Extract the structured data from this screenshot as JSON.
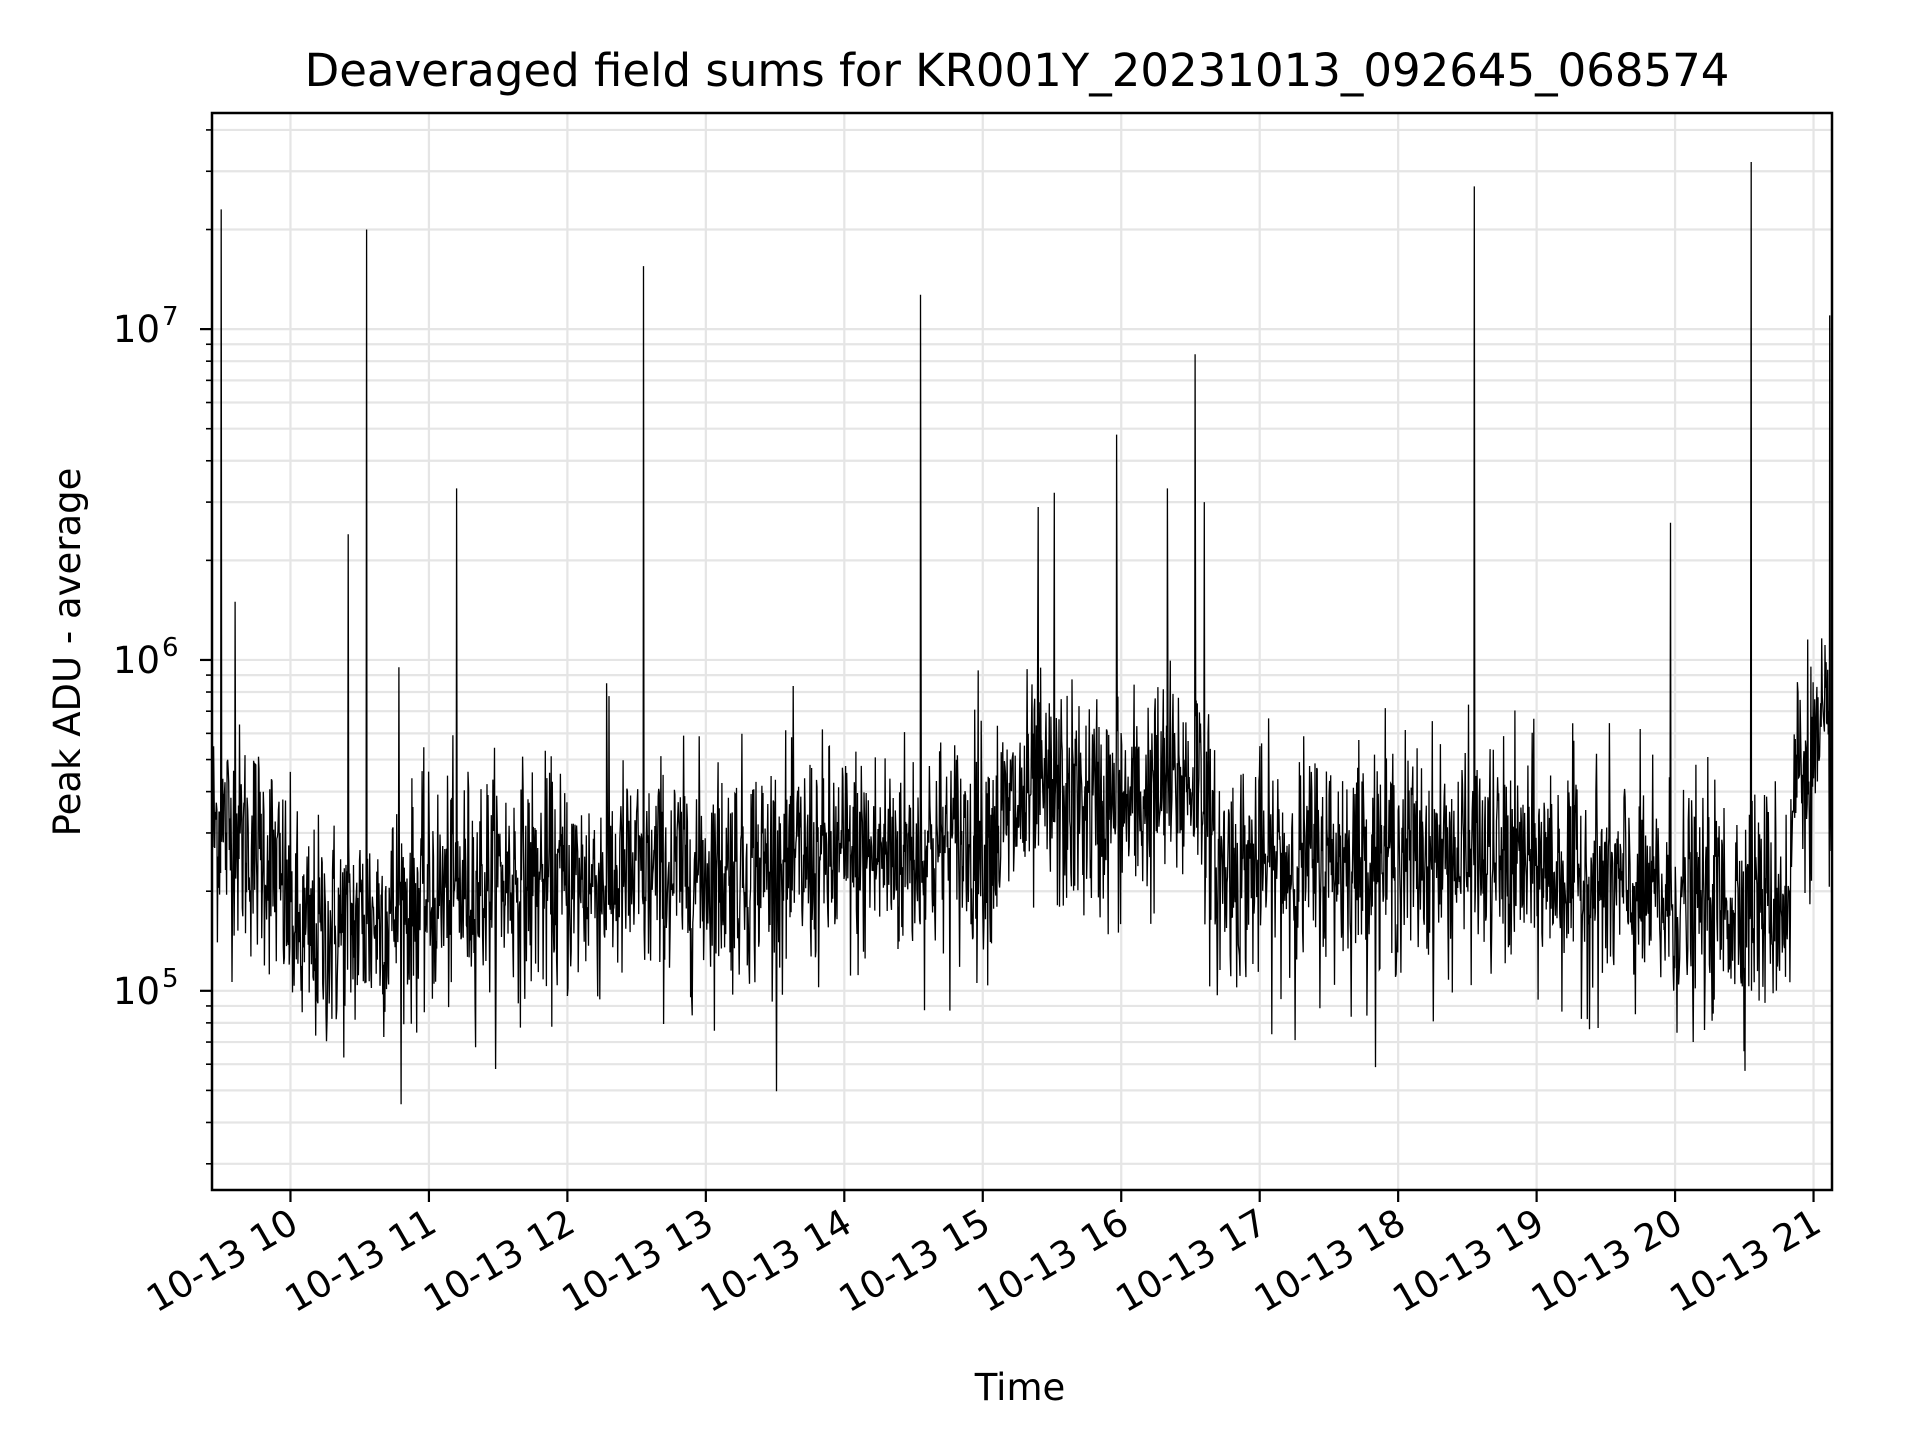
{
  "chart_data": {
    "type": "line",
    "title": "Deaveraged field sums for KR001Y_20231013_092645_068574",
    "xlabel": "Time",
    "ylabel": "Peak ADU - average",
    "y_scale": "log",
    "ylim": [
      25000,
      45000000
    ],
    "xlim": [
      "2023-10-13 09:26",
      "2023-10-13 21:08"
    ],
    "grid": "major and minor",
    "line_color": "#000000",
    "grid_color": "#e5e5e5",
    "x_ticks": [
      {
        "t": "2023-10-13 10:00",
        "label": "10-13 10"
      },
      {
        "t": "2023-10-13 11:00",
        "label": "10-13 11"
      },
      {
        "t": "2023-10-13 12:00",
        "label": "10-13 12"
      },
      {
        "t": "2023-10-13 13:00",
        "label": "10-13 13"
      },
      {
        "t": "2023-10-13 14:00",
        "label": "10-13 14"
      },
      {
        "t": "2023-10-13 15:00",
        "label": "10-13 15"
      },
      {
        "t": "2023-10-13 16:00",
        "label": "10-13 16"
      },
      {
        "t": "2023-10-13 17:00",
        "label": "10-13 17"
      },
      {
        "t": "2023-10-13 18:00",
        "label": "10-13 18"
      },
      {
        "t": "2023-10-13 19:00",
        "label": "10-13 19"
      },
      {
        "t": "2023-10-13 20:00",
        "label": "10-13 20"
      },
      {
        "t": "2023-10-13 21:00",
        "label": "10-13 21"
      }
    ],
    "y_ticks": [
      {
        "value": 100000,
        "base": "10",
        "exp": "5"
      },
      {
        "value": 1000000,
        "base": "10",
        "exp": "6"
      },
      {
        "value": 10000000,
        "base": "10",
        "exp": "7"
      }
    ],
    "baseline": [
      {
        "t": "2023-10-13 09:26",
        "y": 320000
      },
      {
        "t": "2023-10-13 09:50",
        "y": 260000
      },
      {
        "t": "2023-10-13 10:05",
        "y": 140000
      },
      {
        "t": "2023-10-13 10:30",
        "y": 160000
      },
      {
        "t": "2023-10-13 11:00",
        "y": 190000
      },
      {
        "t": "2023-10-13 11:30",
        "y": 220000
      },
      {
        "t": "2023-10-13 12:00",
        "y": 210000
      },
      {
        "t": "2023-10-13 13:00",
        "y": 230000
      },
      {
        "t": "2023-10-13 14:00",
        "y": 250000
      },
      {
        "t": "2023-10-13 15:00",
        "y": 280000
      },
      {
        "t": "2023-10-13 15:20",
        "y": 380000
      },
      {
        "t": "2023-10-13 16:00",
        "y": 350000
      },
      {
        "t": "2023-10-13 16:35",
        "y": 450000
      },
      {
        "t": "2023-10-13 16:40",
        "y": 230000
      },
      {
        "t": "2023-10-13 18:00",
        "y": 260000
      },
      {
        "t": "2023-10-13 19:00",
        "y": 240000
      },
      {
        "t": "2023-10-13 20:00",
        "y": 180000
      },
      {
        "t": "2023-10-13 20:50",
        "y": 190000
      },
      {
        "t": "2023-10-13 20:52",
        "y": 480000
      },
      {
        "t": "2023-10-13 21:08",
        "y": 520000
      }
    ],
    "spikes": [
      {
        "t": "2023-10-13 09:30",
        "y": 23000000
      },
      {
        "t": "2023-10-13 09:36",
        "y": 1500000
      },
      {
        "t": "2023-10-13 10:25",
        "y": 2400000
      },
      {
        "t": "2023-10-13 10:33",
        "y": 20000000
      },
      {
        "t": "2023-10-13 10:47",
        "y": 950000
      },
      {
        "t": "2023-10-13 11:12",
        "y": 3300000
      },
      {
        "t": "2023-10-13 12:17",
        "y": 850000
      },
      {
        "t": "2023-10-13 12:33",
        "y": 15500000
      },
      {
        "t": "2023-10-13 14:33",
        "y": 12700000
      },
      {
        "t": "2023-10-13 14:58",
        "y": 930000
      },
      {
        "t": "2023-10-13 15:24",
        "y": 2900000
      },
      {
        "t": "2023-10-13 15:31",
        "y": 3200000
      },
      {
        "t": "2023-10-13 15:58",
        "y": 4800000
      },
      {
        "t": "2023-10-13 16:20",
        "y": 3300000
      },
      {
        "t": "2023-10-13 16:32",
        "y": 8400000
      },
      {
        "t": "2023-10-13 16:36",
        "y": 3000000
      },
      {
        "t": "2023-10-13 18:33",
        "y": 27000000
      },
      {
        "t": "2023-10-13 19:58",
        "y": 2600000
      },
      {
        "t": "2023-10-13 20:33",
        "y": 32000000
      },
      {
        "t": "2023-10-13 21:07",
        "y": 11000000
      }
    ]
  }
}
